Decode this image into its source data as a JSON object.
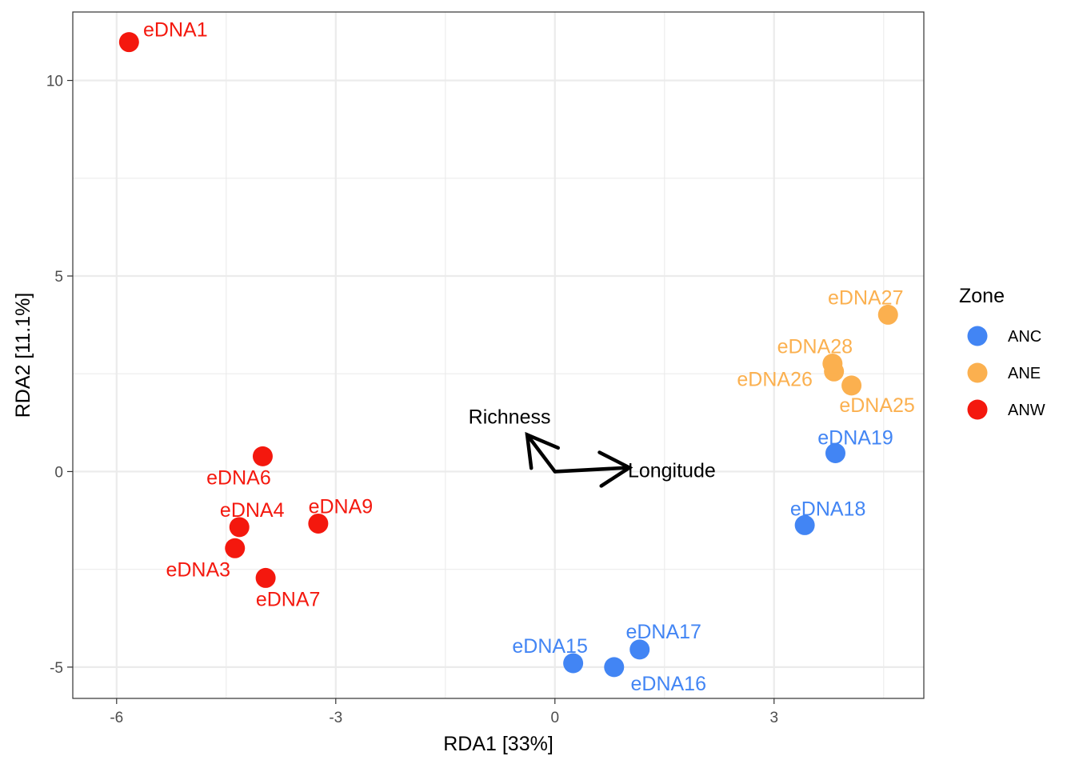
{
  "chart_data": {
    "type": "scatter",
    "xlabel": "RDA1   [33%]",
    "ylabel": "RDA2   [11.1%]",
    "xlim": [
      -6.6,
      5.05
    ],
    "ylim": [
      -5.8,
      11.75
    ],
    "x_ticks": [
      -6,
      -3,
      0,
      3
    ],
    "y_ticks": [
      -5,
      0,
      5,
      10
    ],
    "x_tick_labels": [
      "-6",
      "-3",
      "0",
      "3"
    ],
    "y_tick_labels": [
      "-5",
      "0",
      "5",
      "10"
    ],
    "grid": true,
    "legend": {
      "title": "Zone",
      "placement": "right",
      "entries": [
        {
          "name": "ANC",
          "color": "#4285f4"
        },
        {
          "name": "ANE",
          "color": "#fbb04f"
        },
        {
          "name": "ANW",
          "color": "#f4180e"
        }
      ]
    },
    "points": [
      {
        "label": "eDNA1",
        "zone": "ANW",
        "x": -5.83,
        "y": 10.98
      },
      {
        "label": "eDNA6",
        "zone": "ANW",
        "x": -4.0,
        "y": 0.39
      },
      {
        "label": "eDNA4",
        "zone": "ANW",
        "x": -4.32,
        "y": -1.42
      },
      {
        "label": "eDNA9",
        "zone": "ANW",
        "x": -3.24,
        "y": -1.33
      },
      {
        "label": "eDNA3",
        "zone": "ANW",
        "x": -4.38,
        "y": -1.96
      },
      {
        "label": "eDNA7",
        "zone": "ANW",
        "x": -3.96,
        "y": -2.72
      },
      {
        "label": "eDNA15",
        "zone": "ANC",
        "x": 0.25,
        "y": -4.9
      },
      {
        "label": "eDNA16",
        "zone": "ANC",
        "x": 0.81,
        "y": -5.0
      },
      {
        "label": "eDNA17",
        "zone": "ANC",
        "x": 1.16,
        "y": -4.55
      },
      {
        "label": "eDNA18",
        "zone": "ANC",
        "x": 3.42,
        "y": -1.37
      },
      {
        "label": "eDNA19",
        "zone": "ANC",
        "x": 3.84,
        "y": 0.47
      },
      {
        "label": "eDNA25",
        "zone": "ANE",
        "x": 4.06,
        "y": 2.2
      },
      {
        "label": "eDNA26",
        "zone": "ANE",
        "x": 3.82,
        "y": 2.56
      },
      {
        "label": "eDNA28",
        "zone": "ANE",
        "x": 3.8,
        "y": 2.76
      },
      {
        "label": "eDNA27",
        "zone": "ANE",
        "x": 4.56,
        "y": 4.01
      }
    ],
    "arrows": [
      {
        "label": "Richness",
        "x": -0.38,
        "y": 0.94
      },
      {
        "label": "Longitude",
        "x": 1.02,
        "y": 0.1
      }
    ]
  }
}
